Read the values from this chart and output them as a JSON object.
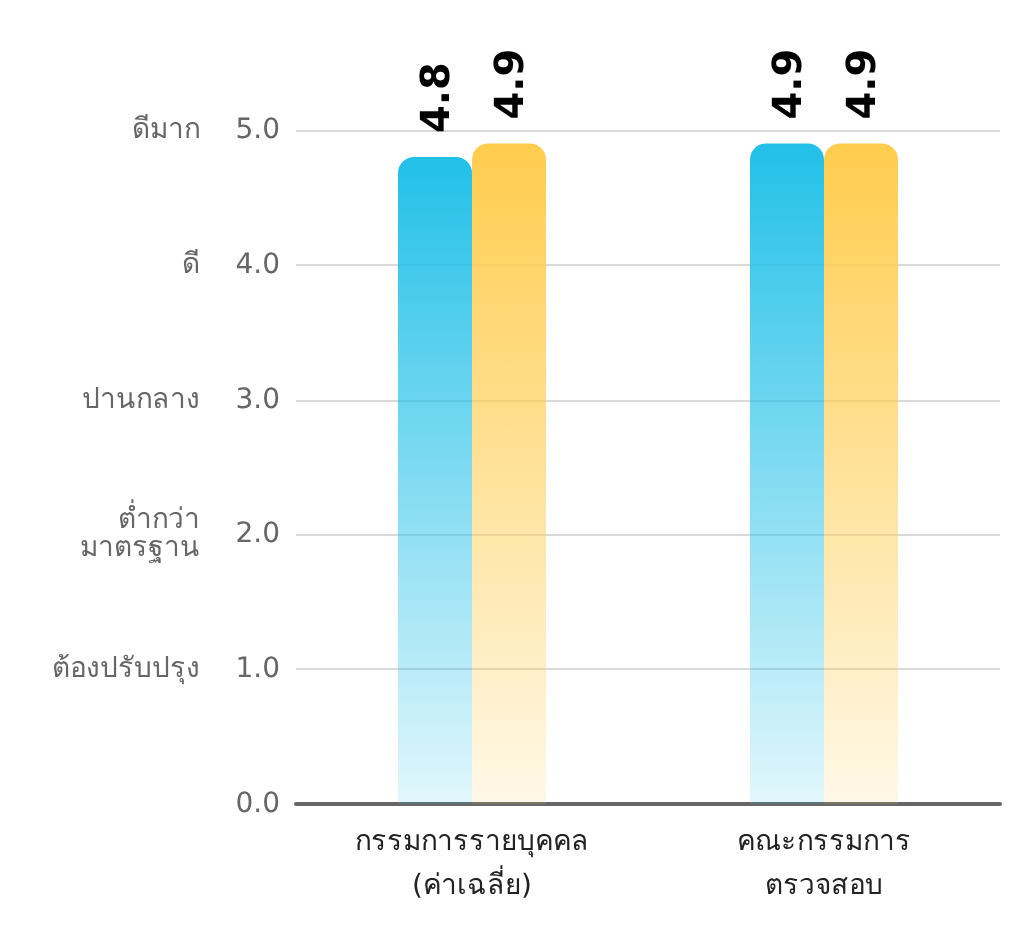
{
  "chart_data": {
    "type": "bar",
    "categories": [
      "กรรมการรายบุคคล\n(ค่าเฉลี่ย)",
      "คณะกรรมการ\nตรวจสอบ"
    ],
    "series": [
      {
        "color": "#22c0e8",
        "values": [
          4.8,
          4.9
        ]
      },
      {
        "color": "#ffcc4d",
        "values": [
          4.9,
          4.9
        ]
      }
    ],
    "ylim": [
      0,
      5
    ],
    "yticks": [
      {
        "value": 0,
        "label": "0.0"
      },
      {
        "value": 1,
        "label": "1.0"
      },
      {
        "value": 2,
        "label": "2.0"
      },
      {
        "value": 3,
        "label": "3.0"
      },
      {
        "value": 4,
        "label": "4.0"
      },
      {
        "value": 5,
        "label": "5.0"
      }
    ],
    "annotations": [
      "ต้องปรับปรุง",
      "ต่ำกว่า\nมาตรฐาน",
      "ปานกลาง",
      "ดี",
      "ดีมาก"
    ],
    "data_labels": true,
    "grid": "y"
  }
}
